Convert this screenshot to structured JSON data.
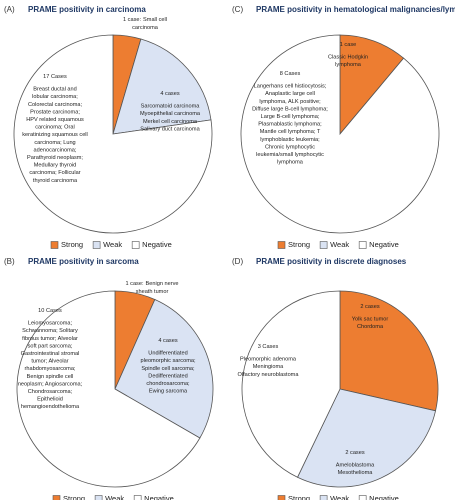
{
  "chart_data": [
    {
      "type": "pie",
      "label": "(A)",
      "title": "PRAME positivity in carcinoma",
      "categories": [
        "Strong",
        "Weak",
        "Negative"
      ],
      "values": [
        1,
        4,
        17
      ],
      "colors": [
        "#ed7d31",
        "#dae3f3",
        "#ffffff"
      ],
      "value_labels": [
        "1 case:",
        "4 cases",
        "17 Cases"
      ],
      "descriptions": [
        [
          "Small cell",
          "carcinoma"
        ],
        [
          "Sarcomatoid carcinoma",
          "Myoepithelial carcinoma",
          "Merkel cell carcinoma",
          "Salivary duct carcinoma"
        ],
        [
          "Breast ductal and",
          "lobular carcinoma;",
          "Colorectal carcinoma;",
          "Prostate carcinoma;",
          "HPV related squamous",
          "carcinoma; Oral",
          "keratinizing squamous cell",
          "carcinoma; Lung",
          "adenocarcinoma;",
          "Parathyroid neoplasm;",
          "Medullary thyroid",
          "carcinoma; Follicular",
          "thyroid carcinoma"
        ]
      ]
    },
    {
      "type": "pie",
      "label": "(B)",
      "title": "PRAME positivity in sarcoma",
      "categories": [
        "Strong",
        "Weak",
        "Negative"
      ],
      "values": [
        1,
        4,
        10
      ],
      "colors": [
        "#ed7d31",
        "#dae3f3",
        "#ffffff"
      ],
      "value_labels": [
        "1 case:",
        "4 cases",
        "10 Cases"
      ],
      "descriptions": [
        [
          "Benign nerve",
          "sheath tumor"
        ],
        [
          "Undifferentiated",
          "pleomorphic sarcoma;",
          "Spindle cell sarcoma;",
          "Dedifferentiated",
          "chondrosarcoma;",
          "Ewing sarcoma"
        ],
        [
          "Leiomyosarcoma;",
          "Schwannoma; Solitary",
          "fibrous tumor; Alveolar",
          "soft part sarcoma;",
          "Gastrointestinal stromal",
          "tumor; Alveolar",
          "rhabdomyosarcoma;",
          "Benign spindle cell",
          "neoplasm; Angiosarcoma;",
          "Chondrosarcoma;",
          "Epithelioid",
          "hemangioendothelioma"
        ]
      ]
    },
    {
      "type": "pie",
      "label": "(C)",
      "title": "PRAME positivity in hematological malignancies/lymphomas",
      "categories": [
        "Strong",
        "Weak",
        "Negative"
      ],
      "values": [
        1,
        0,
        8
      ],
      "colors": [
        "#ed7d31",
        "#dae3f3",
        "#ffffff"
      ],
      "value_labels": [
        "1 case",
        null,
        "8 Cases"
      ],
      "descriptions": [
        [
          "Classic Hodgkin",
          "lymphoma"
        ],
        [],
        [
          "Langerhans cell histiocytosis;",
          "Anaplastic large cell",
          "lymphoma, ALK positive;",
          "Diffuse large B-cell lymphoma;",
          "Large B-cell lymphoma;",
          "Plasmablastic lymphoma;",
          "Mantle cell lymphoma; T",
          "lymphoblastic leukemia;",
          "Chronic lymphocytic",
          "leukemia/small lymphocytic",
          "lymphoma"
        ]
      ]
    },
    {
      "type": "pie",
      "label": "(D)",
      "title": "PRAME positivity in discrete diagnoses",
      "categories": [
        "Strong",
        "Weak",
        "Negative"
      ],
      "values": [
        2,
        2,
        3
      ],
      "colors": [
        "#ed7d31",
        "#dae3f3",
        "#ffffff"
      ],
      "value_labels": [
        "2 cases",
        "2 cases",
        "3 Cases"
      ],
      "descriptions": [
        [
          "Yolk sac tumor",
          "Chordoma"
        ],
        [
          "Ameloblastoma",
          "Mesothelioma"
        ],
        [
          "Pleomorphic adenoma",
          "Meningioma",
          "Olfactory neuroblastoma"
        ]
      ]
    }
  ]
}
